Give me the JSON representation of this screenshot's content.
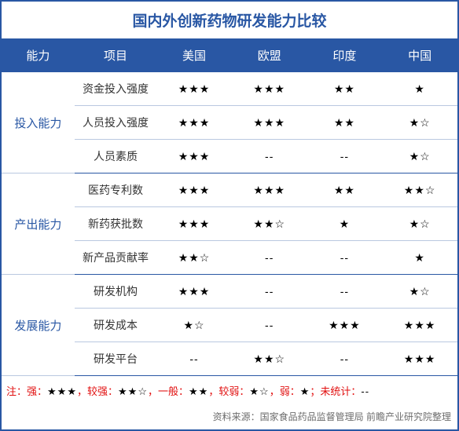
{
  "title": "国内外创新药物研发能力比较",
  "columns": [
    "能力",
    "项目",
    "美国",
    "欧盟",
    "印度",
    "中国"
  ],
  "groups": [
    {
      "name": "投入能力",
      "rows": [
        {
          "label": "资金投入强度",
          "values": [
            "★★★",
            "★★★",
            "★★",
            "★"
          ]
        },
        {
          "label": "人员投入强度",
          "values": [
            "★★★",
            "★★★",
            "★★",
            "★☆"
          ]
        },
        {
          "label": "人员素质",
          "values": [
            "★★★",
            "--",
            "--",
            "★☆"
          ]
        }
      ]
    },
    {
      "name": "产出能力",
      "rows": [
        {
          "label": "医药专利数",
          "values": [
            "★★★",
            "★★★",
            "★★",
            "★★☆"
          ]
        },
        {
          "label": "新药获批数",
          "values": [
            "★★★",
            "★★☆",
            "★",
            "★☆"
          ]
        },
        {
          "label": "新产品贡献率",
          "values": [
            "★★☆",
            "--",
            "--",
            "★"
          ]
        }
      ]
    },
    {
      "name": "发展能力",
      "rows": [
        {
          "label": "研发机构",
          "values": [
            "★★★",
            "--",
            "--",
            "★☆"
          ]
        },
        {
          "label": "研发成本",
          "values": [
            "★☆",
            "--",
            "★★★",
            "★★★"
          ]
        },
        {
          "label": "研发平台",
          "values": [
            "--",
            "★★☆",
            "--",
            "★★★"
          ]
        }
      ]
    }
  ],
  "legend": {
    "prefix": "注：",
    "items": [
      {
        "k": "强：",
        "v": "★★★"
      },
      {
        "k": "较强：",
        "v": "★★☆"
      },
      {
        "k": "一般：",
        "v": "★★"
      },
      {
        "k": "较弱：",
        "v": "★☆"
      },
      {
        "k": "弱：",
        "v": "★"
      },
      {
        "k": "未统计：",
        "v": "--"
      }
    ],
    "sep": "，",
    "end": "；"
  },
  "source": "资料来源：国家食品药品监督管理局  前瞻产业研究院整理",
  "style": {
    "primary_color": "#2957a4",
    "row_border_color": "#b9c8e0",
    "note_color": "#e10e0e",
    "source_color": "#6d6d6d",
    "background": "#ffffff",
    "title_fontsize": 19,
    "header_fontsize": 15,
    "cell_fontsize": 14,
    "note_fontsize": 13,
    "source_fontsize": 12
  }
}
